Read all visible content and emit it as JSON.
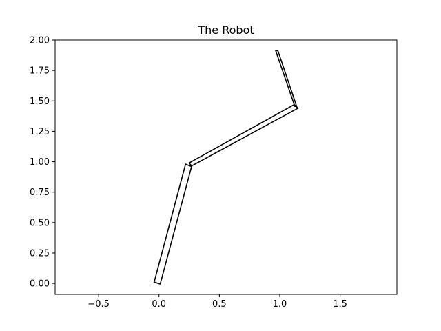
{
  "chart_data": {
    "type": "line",
    "title": "The Robot",
    "xlabel": "",
    "ylabel": "",
    "xlim": [
      -0.86,
      1.97
    ],
    "ylim": [
      -0.09,
      2.0
    ],
    "x_ticks": [
      -0.5,
      0.0,
      0.5,
      1.0,
      1.5
    ],
    "x_tick_labels": [
      "−0.5",
      "0.0",
      "0.5",
      "1.0",
      "1.5"
    ],
    "y_ticks": [
      0.0,
      0.25,
      0.5,
      0.75,
      1.0,
      1.25,
      1.5,
      1.75,
      2.0
    ],
    "y_tick_labels": [
      "0.00",
      "0.25",
      "0.50",
      "0.75",
      "1.00",
      "1.25",
      "1.50",
      "1.75",
      "2.00"
    ],
    "grid": false,
    "link_color": "#000000",
    "series": [
      {
        "values": [
          {
            "x": -0.04,
            "y": 0.01
          },
          {
            "x": 0.22,
            "y": 0.98
          },
          {
            "x": 0.27,
            "y": 0.96
          },
          {
            "x": 0.01,
            "y": -0.005
          }
        ]
      },
      {
        "values": [
          {
            "x": 0.25,
            "y": 0.99
          },
          {
            "x": 1.12,
            "y": 1.47
          },
          {
            "x": 1.15,
            "y": 1.44
          },
          {
            "x": 0.27,
            "y": 0.965
          }
        ]
      },
      {
        "values": [
          {
            "x": 0.965,
            "y": 1.915
          },
          {
            "x": 1.125,
            "y": 1.455
          },
          {
            "x": 1.14,
            "y": 1.455
          },
          {
            "x": 0.985,
            "y": 1.91
          }
        ]
      }
    ]
  }
}
